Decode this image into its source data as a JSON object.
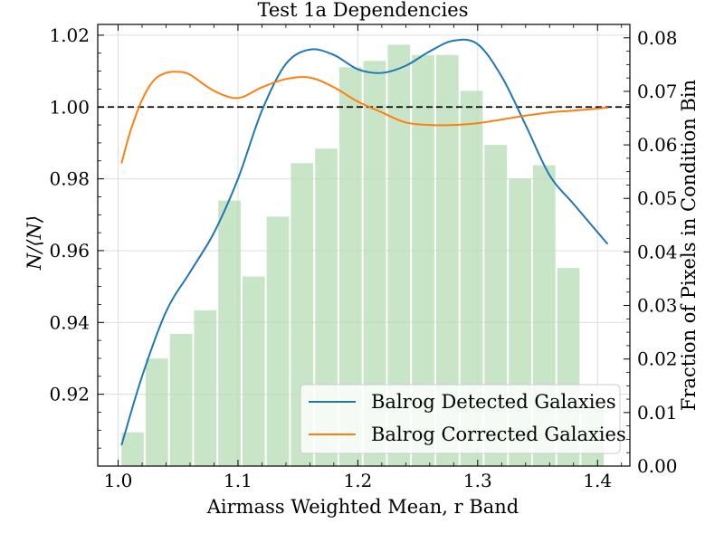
{
  "chart_data": {
    "type": "line",
    "title": "Test 1a Dependencies",
    "xlabel": "Airmass Weighted Mean, r Band",
    "ylabel": "N/⟨N⟩",
    "ylabel_right": "Fraction of Pixels in Condition Bin",
    "xlim": [
      0.983,
      1.427
    ],
    "ylim": [
      0.9,
      1.023
    ],
    "ylim_right": [
      0.0,
      0.0825
    ],
    "x_ticks": [
      1.0,
      1.1,
      1.2,
      1.3,
      1.4
    ],
    "x_tick_labels": [
      "1.0",
      "1.1",
      "1.2",
      "1.3",
      "1.4"
    ],
    "y_ticks": [
      0.92,
      0.94,
      0.96,
      0.98,
      1.0,
      1.02
    ],
    "y_tick_labels": [
      "0.92",
      "0.94",
      "0.96",
      "0.98",
      "1.00",
      "1.02"
    ],
    "y_ticks_right": [
      0.0,
      0.01,
      0.02,
      0.03,
      0.04,
      0.05,
      0.06,
      0.07,
      0.08
    ],
    "y_tick_labels_right": [
      "0.00",
      "0.01",
      "0.02",
      "0.03",
      "0.04",
      "0.05",
      "0.06",
      "0.07",
      "0.08"
    ],
    "grid": true,
    "reference_line": {
      "y": 1.0,
      "style": "dashed",
      "color": "#000000"
    },
    "histogram": {
      "color": "#b7dcb4",
      "bin_edges": [
        1.002,
        1.0222,
        1.0424,
        1.0626,
        1.0828,
        1.103,
        1.1232,
        1.1434,
        1.1636,
        1.1838,
        1.204,
        1.2242,
        1.2444,
        1.2646,
        1.2848,
        1.305,
        1.3252,
        1.3454,
        1.3656,
        1.3858,
        1.406
      ],
      "values": [
        0.0063,
        0.0201,
        0.0247,
        0.0291,
        0.0496,
        0.0354,
        0.0466,
        0.0566,
        0.0593,
        0.0745,
        0.0757,
        0.0787,
        0.0768,
        0.0768,
        0.0701,
        0.06,
        0.0537,
        0.0562,
        0.037,
        0.0112
      ]
    },
    "series": [
      {
        "name": "Balrog Detected Galaxies",
        "color": "#1f77b4",
        "x": [
          1.003,
          1.02,
          1.04,
          1.06,
          1.08,
          1.1,
          1.12,
          1.14,
          1.16,
          1.18,
          1.2,
          1.22,
          1.24,
          1.26,
          1.28,
          1.3,
          1.32,
          1.34,
          1.36,
          1.38,
          1.408
        ],
        "y": [
          0.906,
          0.925,
          0.943,
          0.954,
          0.965,
          0.98,
          0.999,
          1.012,
          1.016,
          1.0145,
          1.0105,
          1.0095,
          1.0115,
          1.0155,
          1.0185,
          1.0175,
          1.0085,
          0.995,
          0.981,
          0.973,
          0.962
        ]
      },
      {
        "name": "Balrog Corrected Galaxies",
        "color": "#ff7f0e",
        "x": [
          1.003,
          1.01,
          1.02,
          1.03,
          1.04,
          1.05,
          1.06,
          1.08,
          1.1,
          1.12,
          1.14,
          1.16,
          1.18,
          1.2,
          1.22,
          1.24,
          1.26,
          1.28,
          1.3,
          1.32,
          1.34,
          1.36,
          1.38,
          1.408
        ],
        "y": [
          0.9845,
          0.993,
          1.002,
          1.0075,
          1.0095,
          1.0098,
          1.009,
          1.0045,
          1.0025,
          1.0055,
          1.0078,
          1.0082,
          1.0055,
          1.0015,
          0.9985,
          0.9957,
          0.995,
          0.995,
          0.9955,
          0.9965,
          0.9976,
          0.9985,
          0.999,
          0.9998
        ]
      }
    ],
    "legend": {
      "position": "lower-right"
    }
  }
}
